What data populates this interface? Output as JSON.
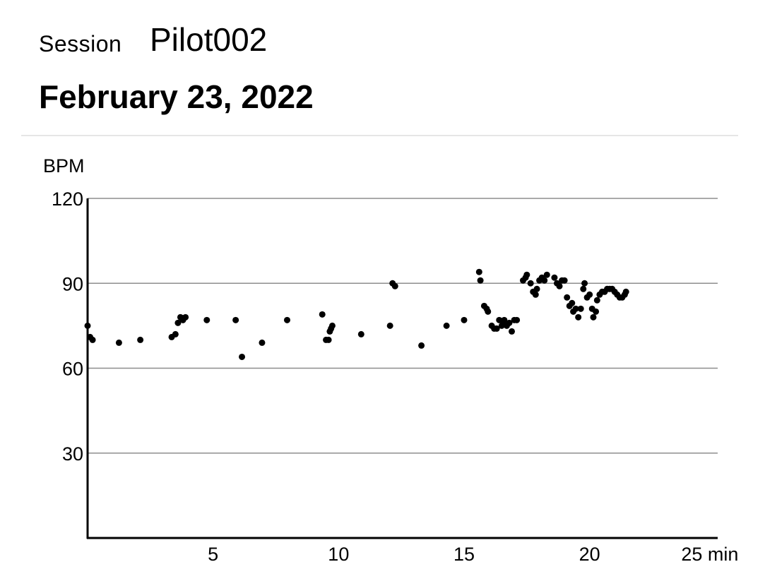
{
  "header": {
    "session_label": "Session",
    "session_name": "Pilot002",
    "date": "February 23, 2022"
  },
  "chart_data": {
    "type": "scatter",
    "title": "",
    "xlabel": "min",
    "ylabel": "BPM",
    "xlim": [
      0,
      25
    ],
    "ylim": [
      0,
      120
    ],
    "x_ticks": [
      5,
      10,
      15,
      20,
      25
    ],
    "x_tick_labels": [
      "5",
      "10",
      "15",
      "20",
      "25 min"
    ],
    "y_ticks": [
      30,
      60,
      90,
      120
    ],
    "y_tick_labels": [
      "30",
      "60",
      "90",
      "120"
    ],
    "grid": true,
    "marker_color": "#000000",
    "grid_color": "#8e8e8e",
    "points": [
      [
        0.0,
        75
      ],
      [
        0.1,
        71
      ],
      [
        0.2,
        70
      ],
      [
        1.25,
        69
      ],
      [
        2.1,
        70
      ],
      [
        3.35,
        71
      ],
      [
        3.5,
        72
      ],
      [
        3.6,
        76
      ],
      [
        3.7,
        78
      ],
      [
        3.8,
        77
      ],
      [
        3.9,
        78
      ],
      [
        4.75,
        77
      ],
      [
        5.9,
        77
      ],
      [
        6.15,
        64
      ],
      [
        6.95,
        69
      ],
      [
        7.95,
        77
      ],
      [
        9.35,
        79
      ],
      [
        9.5,
        70
      ],
      [
        9.6,
        70
      ],
      [
        9.65,
        73
      ],
      [
        9.7,
        74
      ],
      [
        9.75,
        75
      ],
      [
        10.9,
        72
      ],
      [
        12.05,
        75
      ],
      [
        12.15,
        90
      ],
      [
        12.25,
        89
      ],
      [
        13.3,
        68
      ],
      [
        14.3,
        75
      ],
      [
        15.0,
        77
      ],
      [
        15.6,
        94
      ],
      [
        15.65,
        91
      ],
      [
        15.8,
        82
      ],
      [
        15.9,
        81
      ],
      [
        15.95,
        80
      ],
      [
        16.1,
        75
      ],
      [
        16.2,
        74
      ],
      [
        16.3,
        74
      ],
      [
        16.4,
        77
      ],
      [
        16.5,
        75
      ],
      [
        16.55,
        76
      ],
      [
        16.6,
        77
      ],
      [
        16.7,
        75
      ],
      [
        16.8,
        76
      ],
      [
        16.9,
        73
      ],
      [
        17.0,
        77
      ],
      [
        17.1,
        77
      ],
      [
        17.35,
        91
      ],
      [
        17.45,
        92
      ],
      [
        17.5,
        93
      ],
      [
        17.65,
        90
      ],
      [
        17.75,
        87
      ],
      [
        17.85,
        86
      ],
      [
        17.9,
        88
      ],
      [
        18.0,
        91
      ],
      [
        18.1,
        92
      ],
      [
        18.2,
        91
      ],
      [
        18.3,
        93
      ],
      [
        18.6,
        92
      ],
      [
        18.7,
        90
      ],
      [
        18.8,
        89
      ],
      [
        18.9,
        91
      ],
      [
        19.0,
        91
      ],
      [
        19.1,
        85
      ],
      [
        19.2,
        82
      ],
      [
        19.3,
        83
      ],
      [
        19.35,
        80
      ],
      [
        19.45,
        81
      ],
      [
        19.55,
        78
      ],
      [
        19.65,
        81
      ],
      [
        19.75,
        88
      ],
      [
        19.8,
        90
      ],
      [
        19.9,
        85
      ],
      [
        20.0,
        86
      ],
      [
        20.1,
        81
      ],
      [
        20.15,
        78
      ],
      [
        20.25,
        80
      ],
      [
        20.3,
        84
      ],
      [
        20.4,
        86
      ],
      [
        20.5,
        87
      ],
      [
        20.6,
        87
      ],
      [
        20.7,
        88
      ],
      [
        20.8,
        88
      ],
      [
        20.9,
        88
      ],
      [
        21.0,
        87
      ],
      [
        21.1,
        86
      ],
      [
        21.2,
        85
      ],
      [
        21.3,
        85
      ],
      [
        21.4,
        86
      ],
      [
        21.45,
        87
      ]
    ]
  }
}
